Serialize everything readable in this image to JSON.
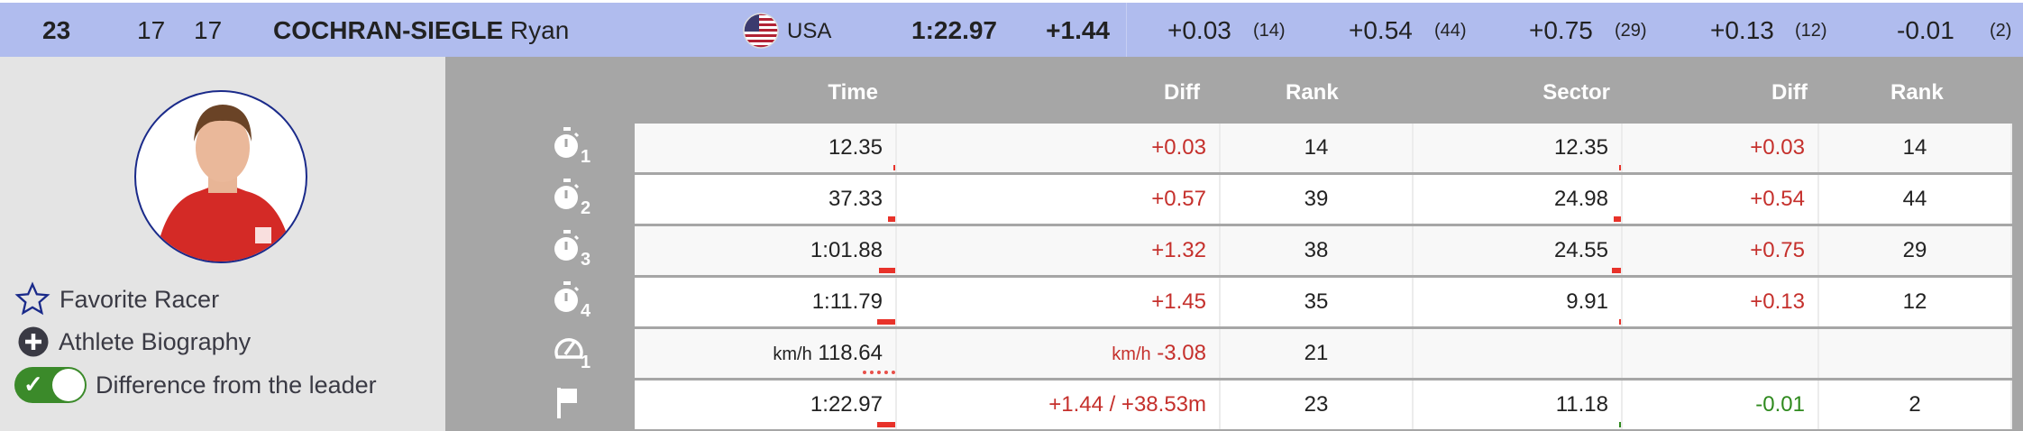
{
  "racer": {
    "rank": "23",
    "bib": "17",
    "start": "17",
    "last_name": "COCHRAN-SIEGLE",
    "first_name": "Ryan",
    "country": "USA",
    "flag_icon": "us-flag-icon",
    "total_time": "1:22.97",
    "total_diff": "+1.44",
    "sectors": [
      {
        "diff": "+0.03",
        "rank": "(14)"
      },
      {
        "diff": "+0.54",
        "rank": "(44)"
      },
      {
        "diff": "+0.75",
        "rank": "(29)"
      },
      {
        "diff": "+0.13",
        "rank": "(12)"
      },
      {
        "diff": "-0.01",
        "rank": "(2)"
      }
    ]
  },
  "sidebar": {
    "favorite": "Favorite Racer",
    "biography": "Athlete Biography",
    "diff_toggle": "Difference from the leader",
    "diff_toggle_on": true
  },
  "table": {
    "headers": {
      "time": "Time",
      "diff": "Diff",
      "rank": "Rank",
      "sector": "Sector",
      "sector_diff": "Diff",
      "sector_rank": "Rank"
    },
    "colors": {
      "behind": "#c5302c",
      "ahead": "#2f8a1e",
      "bar": "#e8322a"
    },
    "rows": [
      {
        "icon": "stopwatch-icon",
        "label": "1",
        "time": "12.35",
        "diff": "+0.03",
        "rank": "14",
        "sector": "12.35",
        "sector_diff": "+0.03",
        "sector_rank": "14"
      },
      {
        "icon": "stopwatch-icon",
        "label": "2",
        "time": "37.33",
        "diff": "+0.57",
        "rank": "39",
        "sector": "24.98",
        "sector_diff": "+0.54",
        "sector_rank": "44"
      },
      {
        "icon": "stopwatch-icon",
        "label": "3",
        "time": "1:01.88",
        "diff": "+1.32",
        "rank": "38",
        "sector": "24.55",
        "sector_diff": "+0.75",
        "sector_rank": "29"
      },
      {
        "icon": "stopwatch-icon",
        "label": "4",
        "time": "1:11.79",
        "diff": "+1.45",
        "rank": "35",
        "sector": "9.91",
        "sector_diff": "+0.13",
        "sector_rank": "12"
      },
      {
        "icon": "speedometer-icon",
        "label": "1",
        "unit": "km/h",
        "time": "118.64",
        "diff_unit": "km/h",
        "diff": "-3.08",
        "rank": "21",
        "sector": "",
        "sector_diff": "",
        "sector_rank": ""
      },
      {
        "icon": "finish-flag-icon",
        "label": "",
        "time": "1:22.97",
        "diff": "+1.44 / +38.53m",
        "rank": "23",
        "sector": "11.18",
        "sector_diff": "-0.01",
        "sector_rank": "2"
      }
    ]
  }
}
